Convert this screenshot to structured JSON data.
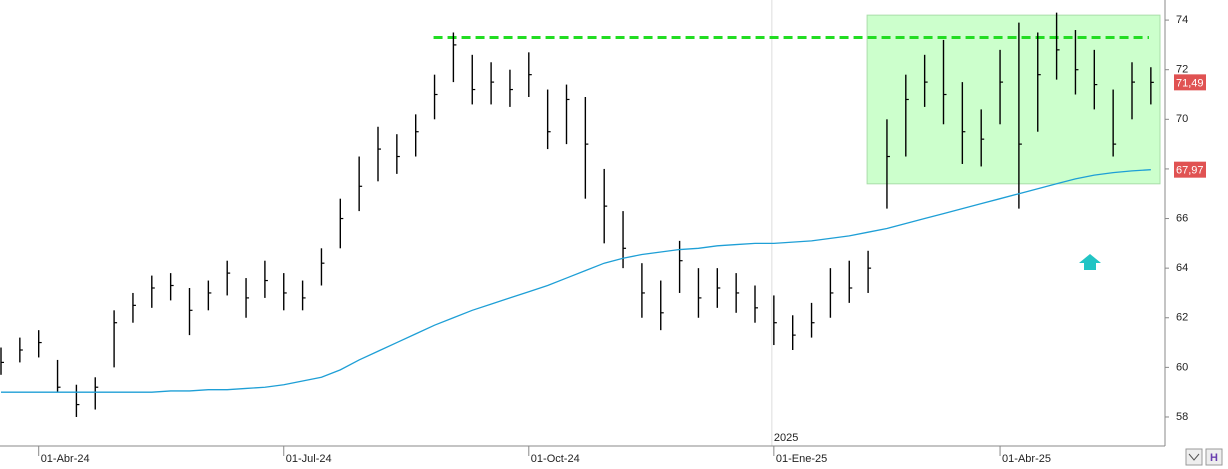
{
  "chart_data": {
    "type": "ohlc",
    "categories": [
      null,
      null,
      "01-Abr-24",
      null,
      null,
      null,
      null,
      null,
      null,
      null,
      null,
      null,
      null,
      null,
      null,
      "01-Jul-24",
      null,
      null,
      null,
      null,
      null,
      null,
      null,
      null,
      null,
      null,
      null,
      null,
      "01-Oct-24",
      null,
      null,
      null,
      null,
      null,
      null,
      null,
      null,
      null,
      null,
      null,
      null,
      "01-Ene-25",
      null,
      null,
      null,
      null,
      null,
      null,
      null,
      null,
      null,
      null,
      null,
      "01-Abr-25",
      null,
      null,
      null,
      null,
      null,
      null,
      null,
      null
    ],
    "year_label": "2025",
    "series": [
      {
        "color": "#000000",
        "high": [
          60.8,
          61.2,
          61.5,
          60.3,
          59.3,
          59.6,
          62.3,
          63.0,
          63.7,
          63.8,
          63.2,
          63.5,
          64.3,
          63.6,
          64.3,
          63.8,
          63.5,
          64.8,
          66.8,
          68.5,
          69.7,
          69.4,
          70.2,
          71.8,
          73.5,
          72.6,
          72.3,
          72.0,
          72.7,
          71.2,
          71.4,
          70.9,
          68.0,
          66.3,
          64.2,
          63.5,
          65.1,
          64.0,
          64.0,
          63.8,
          63.3,
          62.9,
          62.1,
          62.6,
          64.0,
          64.3,
          64.7,
          70.0,
          71.8,
          72.6,
          73.2,
          71.5,
          70.4,
          72.8,
          73.9,
          73.5,
          74.3,
          73.6,
          72.8,
          71.2,
          72.3,
          72.1
        ],
        "low": [
          59.7,
          60.2,
          60.4,
          59.0,
          58.0,
          58.3,
          60.0,
          61.8,
          62.4,
          62.7,
          61.3,
          62.3,
          62.9,
          62.0,
          62.8,
          62.3,
          62.3,
          63.3,
          64.8,
          66.3,
          67.5,
          67.8,
          68.5,
          70.0,
          71.5,
          70.6,
          70.6,
          70.5,
          70.9,
          68.8,
          69.0,
          66.8,
          65.0,
          64.0,
          62.0,
          61.5,
          63.0,
          62.0,
          62.4,
          62.2,
          61.8,
          60.9,
          60.7,
          61.2,
          62.0,
          62.6,
          63.0,
          66.4,
          68.5,
          70.5,
          69.8,
          68.2,
          68.1,
          69.8,
          66.4,
          69.5,
          71.6,
          71.0,
          70.4,
          68.5,
          70.0,
          70.6
        ],
        "close": [
          60.2,
          60.7,
          61,
          59.2,
          58.5,
          59.2,
          61.8,
          62.5,
          63.2,
          63.3,
          62.3,
          63,
          63.8,
          62.8,
          63.5,
          63,
          62.8,
          64.2,
          66,
          67.3,
          68.8,
          68.5,
          69.5,
          71,
          73,
          71.2,
          71.5,
          71.2,
          71.8,
          69.5,
          70.8,
          69,
          66.5,
          64.8,
          63,
          62.2,
          64.3,
          62.8,
          63.2,
          63,
          62.4,
          61.8,
          61.3,
          61.8,
          63,
          63.2,
          64,
          68.5,
          70.8,
          71.5,
          71,
          69.5,
          69.2,
          71.5,
          69,
          71.8,
          72.8,
          72,
          71.4,
          69,
          71.5,
          71.49
        ]
      },
      {
        "color": "#1e9fd6",
        "values": [
          59.0,
          59.0,
          59.0,
          59.0,
          59.0,
          59.0,
          59.0,
          59.0,
          59.0,
          59.05,
          59.05,
          59.1,
          59.1,
          59.15,
          59.2,
          59.3,
          59.45,
          59.6,
          59.9,
          60.3,
          60.65,
          61.0,
          61.35,
          61.7,
          62.0,
          62.3,
          62.55,
          62.8,
          63.05,
          63.3,
          63.6,
          63.9,
          64.2,
          64.4,
          64.55,
          64.65,
          64.75,
          64.8,
          64.9,
          64.95,
          65.0,
          65.0,
          65.05,
          65.1,
          65.2,
          65.3,
          65.45,
          65.6,
          65.8,
          66.0,
          66.2,
          66.4,
          66.6,
          66.8,
          67.0,
          67.2,
          67.4,
          67.6,
          67.75,
          67.85,
          67.92,
          67.97
        ]
      }
    ],
    "last_price": {
      "value": 71.49,
      "label": "71,49"
    },
    "ma_last": {
      "value": 67.97,
      "label": "67,97"
    },
    "resistance": {
      "value": 73.3,
      "color": "#22dd22"
    },
    "highlight": {
      "low": 67.4,
      "high": 74.2,
      "color": "#ccffcc"
    },
    "ylim": [
      56.83,
      74.81
    ],
    "yticks": [
      58,
      60,
      62,
      64,
      66,
      68,
      70,
      72,
      74
    ]
  }
}
